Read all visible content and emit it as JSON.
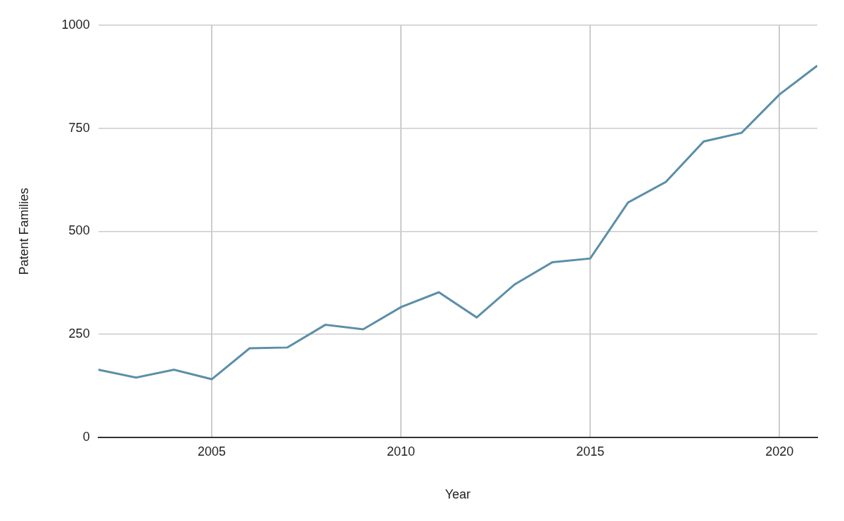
{
  "chart_data": {
    "type": "line",
    "x_label": "Year",
    "y_label": "Patent Families",
    "x": [
      2002,
      2003,
      2004,
      2005,
      2006,
      2007,
      2008,
      2009,
      2010,
      2011,
      2012,
      2013,
      2014,
      2015,
      2016,
      2017,
      2018,
      2019,
      2020,
      2021
    ],
    "values": [
      164,
      145,
      164,
      141,
      216,
      218,
      273,
      262,
      316,
      352,
      291,
      371,
      425,
      434,
      570,
      620,
      718,
      739,
      832,
      902
    ],
    "color": "#5b8fa8",
    "xlim": [
      2002,
      2021
    ],
    "xticks": [
      2005,
      2010,
      2015,
      2020
    ],
    "ylim": [
      0,
      1000
    ],
    "yticks": [
      0,
      250,
      500,
      750,
      1000
    ],
    "grid": true
  }
}
